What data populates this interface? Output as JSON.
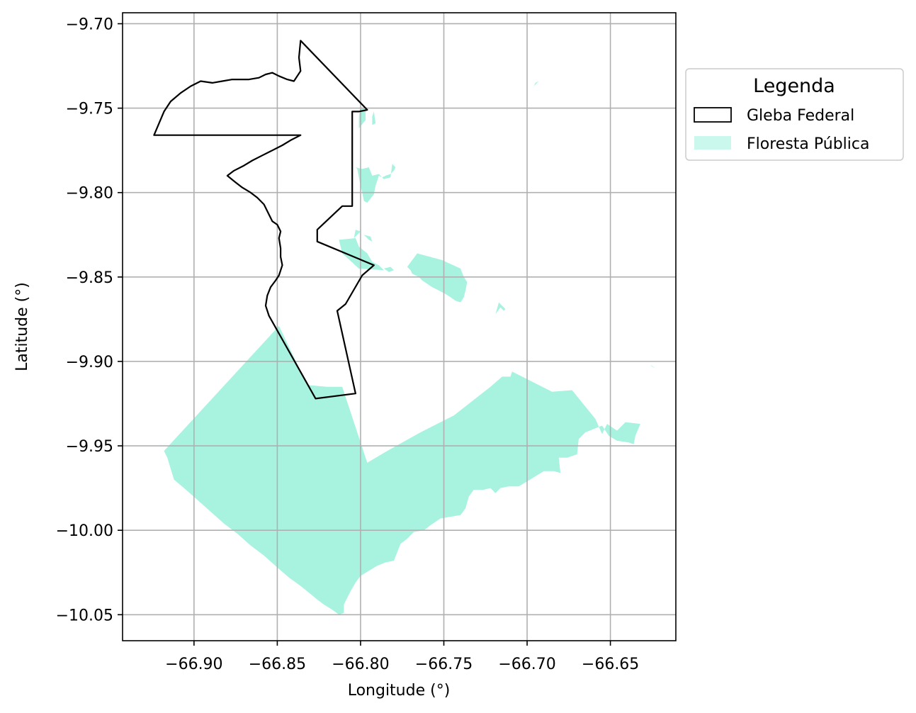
{
  "chart_data": {
    "type": "map",
    "xlabel": "Longitude (°)",
    "ylabel": "Latitude (°)",
    "xlim": [
      -66.9429,
      -66.6107
    ],
    "ylim": [
      -10.0654,
      -9.6935
    ],
    "grid": true,
    "x_ticks": [
      -66.9,
      -66.85,
      -66.8,
      -66.75,
      -66.7,
      -66.65
    ],
    "x_tick_labels": [
      "−66.90",
      "−66.85",
      "−66.80",
      "−66.75",
      "−66.70",
      "−66.65"
    ],
    "y_ticks": [
      -9.7,
      -9.75,
      -9.8,
      -9.85,
      -9.9,
      -9.95,
      -10.0,
      -10.05
    ],
    "y_tick_labels": [
      "−9.70",
      "−9.75",
      "−9.80",
      "−9.85",
      "−9.90",
      "−9.95",
      "−10.00",
      "−10.05"
    ],
    "legend": {
      "title": "Legenda",
      "placement": "outside-upper-right",
      "entries": [
        {
          "label": "Gleba Federal",
          "style": "outline",
          "edge_color": "#000000",
          "face_color": "#ffffff"
        },
        {
          "label": "Floresta Pública",
          "style": "fill",
          "face_color": "#A7F3E0"
        }
      ]
    },
    "layers": {
      "floresta_publica": {
        "name": "Floresta Pública",
        "color": "#A7F3E0",
        "polygons": [
          [
            [
              -66.918,
              -9.953
            ],
            [
              -66.849,
              -9.879
            ],
            [
              -66.832,
              -9.914
            ],
            [
              -66.82,
              -9.915
            ],
            [
              -66.811,
              -9.915
            ],
            [
              -66.796,
              -9.96
            ],
            [
              -66.784,
              -9.953
            ],
            [
              -66.764,
              -9.942
            ],
            [
              -66.744,
              -9.932
            ],
            [
              -66.722,
              -9.915
            ],
            [
              -66.715,
              -9.909
            ],
            [
              -66.71,
              -9.909
            ],
            [
              -66.709,
              -9.906
            ],
            [
              -66.705,
              -9.908
            ],
            [
              -66.685,
              -9.918
            ],
            [
              -66.673,
              -9.917
            ],
            [
              -66.659,
              -9.934
            ],
            [
              -66.655,
              -9.943
            ],
            [
              -66.652,
              -9.937
            ],
            [
              -66.646,
              -9.941
            ],
            [
              -66.641,
              -9.936
            ],
            [
              -66.632,
              -9.937
            ],
            [
              -66.635,
              -9.944
            ],
            [
              -66.636,
              -9.949
            ],
            [
              -66.639,
              -9.948
            ],
            [
              -66.646,
              -9.947
            ],
            [
              -66.651,
              -9.944
            ],
            [
              -66.655,
              -9.938
            ],
            [
              -66.66,
              -9.94
            ],
            [
              -66.665,
              -9.942
            ],
            [
              -66.669,
              -9.946
            ],
            [
              -66.67,
              -9.955
            ],
            [
              -66.676,
              -9.957
            ],
            [
              -66.681,
              -9.957
            ],
            [
              -66.68,
              -9.966
            ],
            [
              -66.684,
              -9.965
            ],
            [
              -66.69,
              -9.965
            ],
            [
              -66.695,
              -9.968
            ],
            [
              -66.7,
              -9.971
            ],
            [
              -66.705,
              -9.974
            ],
            [
              -66.711,
              -9.974
            ],
            [
              -66.716,
              -9.975
            ],
            [
              -66.719,
              -9.978
            ],
            [
              -66.722,
              -9.975
            ],
            [
              -66.726,
              -9.976
            ],
            [
              -66.732,
              -9.976
            ],
            [
              -66.735,
              -9.98
            ],
            [
              -66.737,
              -9.987
            ],
            [
              -66.74,
              -9.991
            ],
            [
              -66.746,
              -9.992
            ],
            [
              -66.752,
              -9.993
            ],
            [
              -66.758,
              -9.997
            ],
            [
              -66.762,
              -10.0
            ],
            [
              -66.768,
              -10.001
            ],
            [
              -66.772,
              -10.005
            ],
            [
              -66.776,
              -10.008
            ],
            [
              -66.78,
              -10.018
            ],
            [
              -66.785,
              -10.019
            ],
            [
              -66.79,
              -10.021
            ],
            [
              -66.795,
              -10.024
            ],
            [
              -66.8,
              -10.027
            ],
            [
              -66.803,
              -10.031
            ],
            [
              -66.806,
              -10.036
            ],
            [
              -66.808,
              -10.04
            ],
            [
              -66.81,
              -10.044
            ],
            [
              -66.81,
              -10.049
            ],
            [
              -66.813,
              -10.05
            ],
            [
              -66.817,
              -10.047
            ],
            [
              -66.822,
              -10.044
            ],
            [
              -66.826,
              -10.041
            ],
            [
              -66.831,
              -10.037
            ],
            [
              -66.836,
              -10.033
            ],
            [
              -66.843,
              -10.028
            ],
            [
              -66.85,
              -10.022
            ],
            [
              -66.858,
              -10.015
            ],
            [
              -66.866,
              -10.009
            ],
            [
              -66.874,
              -10.002
            ],
            [
              -66.882,
              -9.996
            ],
            [
              -66.89,
              -9.989
            ],
            [
              -66.898,
              -9.982
            ],
            [
              -66.906,
              -9.975
            ],
            [
              -66.912,
              -9.97
            ],
            [
              -66.916,
              -9.957
            ]
          ],
          [
            [
              -66.813,
              -9.828
            ],
            [
              -66.803,
              -9.827
            ],
            [
              -66.801,
              -9.832
            ],
            [
              -66.796,
              -9.836
            ],
            [
              -66.793,
              -9.841
            ],
            [
              -66.789,
              -9.843
            ],
            [
              -66.786,
              -9.846
            ],
            [
              -66.801,
              -9.845
            ],
            [
              -66.811,
              -9.836
            ]
          ],
          [
            [
              -66.801,
              -9.762
            ],
            [
              -66.797,
              -9.757
            ],
            [
              -66.797,
              -9.751
            ],
            [
              -66.8,
              -9.749
            ],
            [
              -66.801,
              -9.755
            ]
          ],
          [
            [
              -66.793,
              -9.755
            ],
            [
              -66.792,
              -9.752
            ],
            [
              -66.791,
              -9.759
            ],
            [
              -66.793,
              -9.76
            ]
          ],
          [
            [
              -66.804,
              -9.784
            ],
            [
              -66.802,
              -9.786
            ],
            [
              -66.801,
              -9.791
            ],
            [
              -66.8,
              -9.796
            ],
            [
              -66.799,
              -9.8
            ],
            [
              -66.798,
              -9.805
            ],
            [
              -66.796,
              -9.806
            ],
            [
              -66.792,
              -9.801
            ],
            [
              -66.791,
              -9.796
            ],
            [
              -66.789,
              -9.79
            ],
            [
              -66.787,
              -9.791
            ],
            [
              -66.785,
              -9.79
            ],
            [
              -66.782,
              -9.789
            ],
            [
              -66.78,
              -9.787
            ],
            [
              -66.779,
              -9.785
            ],
            [
              -66.781,
              -9.783
            ],
            [
              -66.782,
              -9.791
            ],
            [
              -66.786,
              -9.792
            ],
            [
              -66.789,
              -9.789
            ],
            [
              -66.793,
              -9.79
            ],
            [
              -66.795,
              -9.785
            ],
            [
              -66.799,
              -9.786
            ],
            [
              -66.803,
              -9.785
            ]
          ],
          [
            [
              -66.803,
              -9.822
            ],
            [
              -66.8,
              -9.823
            ],
            [
              -66.804,
              -9.827
            ]
          ],
          [
            [
              -66.798,
              -9.825
            ],
            [
              -66.794,
              -9.826
            ],
            [
              -66.793,
              -9.829
            ],
            [
              -66.795,
              -9.828
            ]
          ],
          [
            [
              -66.786,
              -9.845
            ],
            [
              -66.782,
              -9.844
            ],
            [
              -66.78,
              -9.846
            ],
            [
              -66.783,
              -9.847
            ]
          ],
          [
            [
              -66.772,
              -9.844
            ],
            [
              -66.766,
              -9.836
            ],
            [
              -66.751,
              -9.84
            ],
            [
              -66.74,
              -9.845
            ],
            [
              -66.738,
              -9.85
            ],
            [
              -66.736,
              -9.853
            ],
            [
              -66.737,
              -9.858
            ],
            [
              -66.738,
              -9.862
            ],
            [
              -66.74,
              -9.865
            ],
            [
              -66.743,
              -9.864
            ],
            [
              -66.746,
              -9.862
            ],
            [
              -66.749,
              -9.86
            ],
            [
              -66.753,
              -9.858
            ],
            [
              -66.757,
              -9.856
            ],
            [
              -66.76,
              -9.854
            ],
            [
              -66.763,
              -9.852
            ],
            [
              -66.765,
              -9.85
            ],
            [
              -66.767,
              -9.849
            ],
            [
              -66.769,
              -9.848
            ],
            [
              -66.77,
              -9.846
            ]
          ],
          [
            [
              -66.713,
              -9.869
            ],
            [
              -66.717,
              -9.865
            ],
            [
              -66.719,
              -9.872
            ],
            [
              -66.716,
              -9.868
            ],
            [
              -66.714,
              -9.87
            ]
          ],
          [
            [
              -66.696,
              -9.737
            ],
            [
              -66.693,
              -9.734
            ],
            [
              -66.695,
              -9.735
            ]
          ],
          [
            [
              -66.626,
              -9.902
            ],
            [
              -66.623,
              -9.904
            ],
            [
              -66.625,
              -9.903
            ]
          ]
        ]
      },
      "gleba_federal": {
        "name": "Gleba Federal",
        "edge_color": "#000000",
        "polygons": [
          [
            [
              -66.836,
              -9.71
            ],
            [
              -66.796,
              -9.751
            ],
            [
              -66.801,
              -9.752
            ],
            [
              -66.805,
              -9.752
            ],
            [
              -66.805,
              -9.808
            ],
            [
              -66.811,
              -9.808
            ],
            [
              -66.826,
              -9.822
            ],
            [
              -66.826,
              -9.829
            ],
            [
              -66.792,
              -9.843
            ],
            [
              -66.799,
              -9.849
            ],
            [
              -66.809,
              -9.866
            ],
            [
              -66.814,
              -9.87
            ],
            [
              -66.803,
              -9.919
            ],
            [
              -66.827,
              -9.922
            ],
            [
              -66.855,
              -9.873
            ],
            [
              -66.857,
              -9.867
            ],
            [
              -66.856,
              -9.861
            ],
            [
              -66.854,
              -9.856
            ],
            [
              -66.851,
              -9.852
            ],
            [
              -66.849,
              -9.849
            ],
            [
              -66.847,
              -9.843
            ],
            [
              -66.848,
              -9.838
            ],
            [
              -66.848,
              -9.833
            ],
            [
              -66.849,
              -9.827
            ],
            [
              -66.848,
              -9.823
            ],
            [
              -66.85,
              -9.819
            ],
            [
              -66.853,
              -9.817
            ],
            [
              -66.855,
              -9.813
            ],
            [
              -66.858,
              -9.807
            ],
            [
              -66.862,
              -9.803
            ],
            [
              -66.866,
              -9.8
            ],
            [
              -66.871,
              -9.797
            ],
            [
              -66.875,
              -9.794
            ],
            [
              -66.88,
              -9.79
            ],
            [
              -66.876,
              -9.787
            ],
            [
              -66.87,
              -9.784
            ],
            [
              -66.865,
              -9.781
            ],
            [
              -66.859,
              -9.778
            ],
            [
              -66.853,
              -9.775
            ],
            [
              -66.847,
              -9.772
            ],
            [
              -66.842,
              -9.769
            ],
            [
              -66.836,
              -9.766
            ],
            [
              -66.924,
              -9.766
            ],
            [
              -66.918,
              -9.752
            ],
            [
              -66.914,
              -9.746
            ],
            [
              -66.908,
              -9.741
            ],
            [
              -66.902,
              -9.737
            ],
            [
              -66.896,
              -9.734
            ],
            [
              -66.889,
              -9.735
            ],
            [
              -66.883,
              -9.734
            ],
            [
              -66.877,
              -9.733
            ],
            [
              -66.872,
              -9.733
            ],
            [
              -66.867,
              -9.733
            ],
            [
              -66.861,
              -9.732
            ],
            [
              -66.857,
              -9.73
            ],
            [
              -66.853,
              -9.729
            ],
            [
              -66.849,
              -9.731
            ],
            [
              -66.844,
              -9.733
            ],
            [
              -66.84,
              -9.734
            ],
            [
              -66.836,
              -9.728
            ],
            [
              -66.837,
              -9.72
            ]
          ]
        ]
      }
    }
  }
}
